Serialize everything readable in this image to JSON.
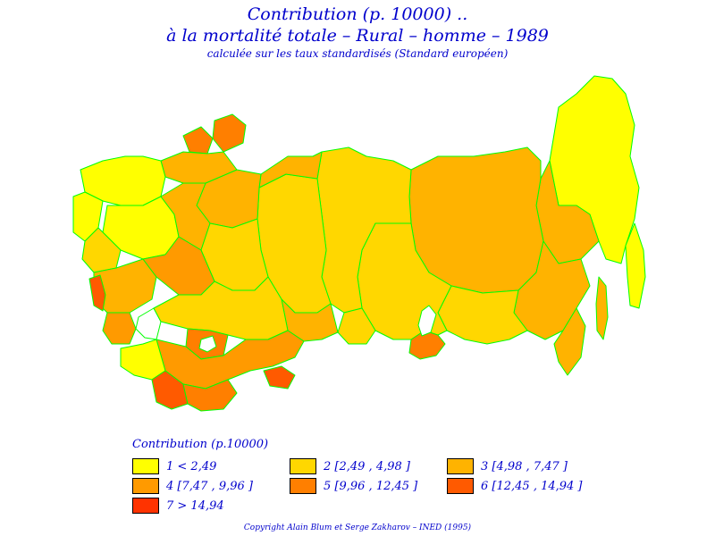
{
  "title": {
    "line1": "Contribution  (p. 10000) ..",
    "line2": "à la mortalité totale  –  Rural  –  homme  –  1989",
    "line3": "calculée sur les taux standardisés (Standard européen)"
  },
  "legend": {
    "title": "Contribution  (p.10000)",
    "items": [
      {
        "label": "1  <  2,49",
        "color": "#ffff00"
      },
      {
        "label": "2  [2,49  ,  4,98  ]",
        "color": "#ffd700"
      },
      {
        "label": "3  [4,98  ,  7,47  ]",
        "color": "#ffb300"
      },
      {
        "label": "4  [7,47  ,  9,96  ]",
        "color": "#ff9a00"
      },
      {
        "label": "5  [9,96  ,  12,45  ]",
        "color": "#ff7f00"
      },
      {
        "label": "6  [12,45  ,  14,94  ]",
        "color": "#ff5a00"
      },
      {
        "label": "7  >  14,94",
        "color": "#ff3300"
      }
    ]
  },
  "colors": {
    "border": "#00ff00",
    "text": "#0000cc"
  },
  "copyright": "Copyright  Alain  Blum  et  Serge  Zakharov  –  INED  (1995)"
}
